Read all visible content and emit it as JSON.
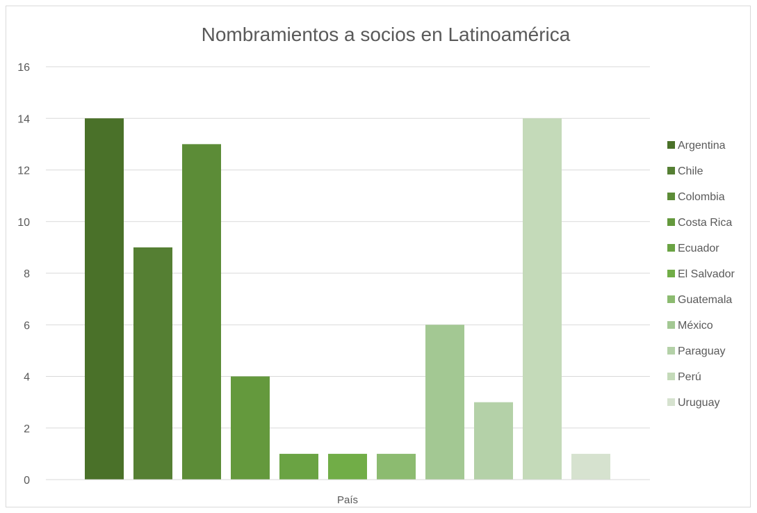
{
  "chart_data": {
    "type": "bar",
    "title": "Nombramientos a socios en Latinoamérica",
    "xlabel": "País",
    "ylabel": "",
    "ylim": [
      0,
      16
    ],
    "yticks": [
      0,
      2,
      4,
      6,
      8,
      10,
      12,
      14,
      16
    ],
    "grid": true,
    "legend_position": "right",
    "series": [
      {
        "name": "Argentina",
        "value": 14,
        "color": "#4a7129"
      },
      {
        "name": "Chile",
        "value": 9,
        "color": "#557f33"
      },
      {
        "name": "Colombia",
        "value": 13,
        "color": "#5c8c37"
      },
      {
        "name": "Costa Rica",
        "value": 4,
        "color": "#64993d"
      },
      {
        "name": "Ecuador",
        "value": 1,
        "color": "#6aa343"
      },
      {
        "name": "El Salvador",
        "value": 1,
        "color": "#71ad47"
      },
      {
        "name": "Guatemala",
        "value": 1,
        "color": "#8cbb70"
      },
      {
        "name": "México",
        "value": 6,
        "color": "#a3c893"
      },
      {
        "name": "Paraguay",
        "value": 3,
        "color": "#b4d1a8"
      },
      {
        "name": "Perú",
        "value": 14,
        "color": "#c4dab9"
      },
      {
        "name": "Uruguay",
        "value": 1,
        "color": "#d6e2cf"
      }
    ]
  }
}
